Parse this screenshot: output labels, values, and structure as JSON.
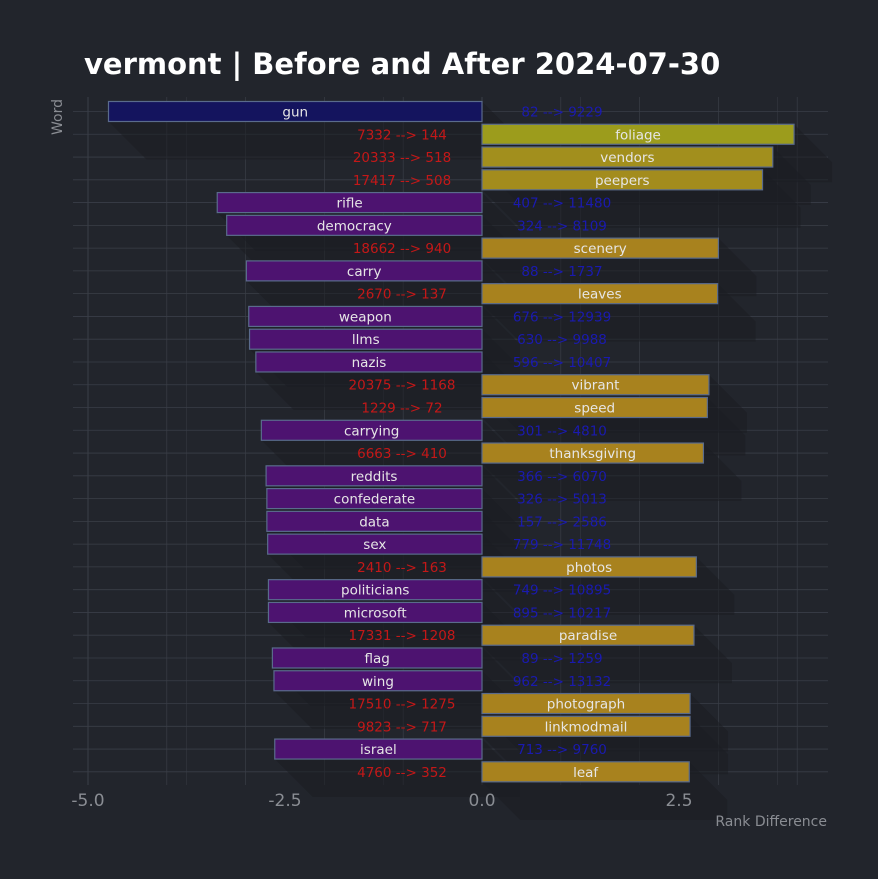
{
  "chart_data": {
    "type": "bar",
    "orientation": "horizontal",
    "title": "vermont | Before and After 2024-07-30",
    "xlabel": "Rank Difference",
    "ylabel": "Word",
    "xlim": [
      -5.1,
      4.4
    ],
    "xticks": [
      -5.0,
      -2.5,
      0.0,
      2.5
    ],
    "xtick_labels": [
      "-5.0",
      "-2.5",
      "0.0",
      "2.5"
    ],
    "grid": true,
    "colors": {
      "background": "#22252c",
      "negative_start": "#14145e",
      "negative_end": "#4d1370",
      "positive_start": "#9c9c1c",
      "positive_end": "#a8821e",
      "bar_edge": "#5a6b8c",
      "rank_negative": "#c41818",
      "rank_positive": "#1a1ab0"
    },
    "bars": [
      {
        "word": "gun",
        "value": -4.74,
        "rank": "82 --> 9229"
      },
      {
        "word": "foliage",
        "value": 3.96,
        "rank": "7332 --> 144"
      },
      {
        "word": "vendors",
        "value": 3.69,
        "rank": "20333 --> 518"
      },
      {
        "word": "peepers",
        "value": 3.56,
        "rank": "17417 --> 508"
      },
      {
        "word": "rifle",
        "value": -3.36,
        "rank": "407 --> 11480"
      },
      {
        "word": "democracy",
        "value": -3.24,
        "rank": "324 --> 8109"
      },
      {
        "word": "scenery",
        "value": 3.0,
        "rank": "18662 --> 940"
      },
      {
        "word": "carry",
        "value": -2.99,
        "rank": "88 --> 1737"
      },
      {
        "word": "leaves",
        "value": 2.99,
        "rank": "2670 --> 137"
      },
      {
        "word": "weapon",
        "value": -2.96,
        "rank": "676 --> 12939"
      },
      {
        "word": "llms",
        "value": -2.95,
        "rank": "630 --> 9988"
      },
      {
        "word": "nazis",
        "value": -2.87,
        "rank": "596 --> 10407"
      },
      {
        "word": "vibrant",
        "value": 2.88,
        "rank": "20375 --> 1168"
      },
      {
        "word": "speed",
        "value": 2.86,
        "rank": "1229 --> 72"
      },
      {
        "word": "carrying",
        "value": -2.8,
        "rank": "301 --> 4810"
      },
      {
        "word": "thanksgiving",
        "value": 2.81,
        "rank": "6663 --> 410"
      },
      {
        "word": "reddits",
        "value": -2.74,
        "rank": "366 --> 6070"
      },
      {
        "word": "confederate",
        "value": -2.73,
        "rank": "326 --> 5013"
      },
      {
        "word": "data",
        "value": -2.73,
        "rank": "157 --> 2586"
      },
      {
        "word": "sex",
        "value": -2.72,
        "rank": "779 --> 11748"
      },
      {
        "word": "photos",
        "value": 2.72,
        "rank": "2410 --> 163"
      },
      {
        "word": "politicians",
        "value": -2.71,
        "rank": "749 --> 10895"
      },
      {
        "word": "microsoft",
        "value": -2.71,
        "rank": "895 --> 10217"
      },
      {
        "word": "paradise",
        "value": 2.69,
        "rank": "17331 --> 1208"
      },
      {
        "word": "flag",
        "value": -2.66,
        "rank": "89 --> 1259"
      },
      {
        "word": "wing",
        "value": -2.64,
        "rank": "962 --> 13132"
      },
      {
        "word": "photograph",
        "value": 2.64,
        "rank": "17510 --> 1275"
      },
      {
        "word": "linkmodmail",
        "value": 2.64,
        "rank": "9823 --> 717"
      },
      {
        "word": "israel",
        "value": -2.63,
        "rank": "713 --> 9760"
      },
      {
        "word": "leaf",
        "value": 2.63,
        "rank": "4760 --> 352"
      }
    ]
  }
}
